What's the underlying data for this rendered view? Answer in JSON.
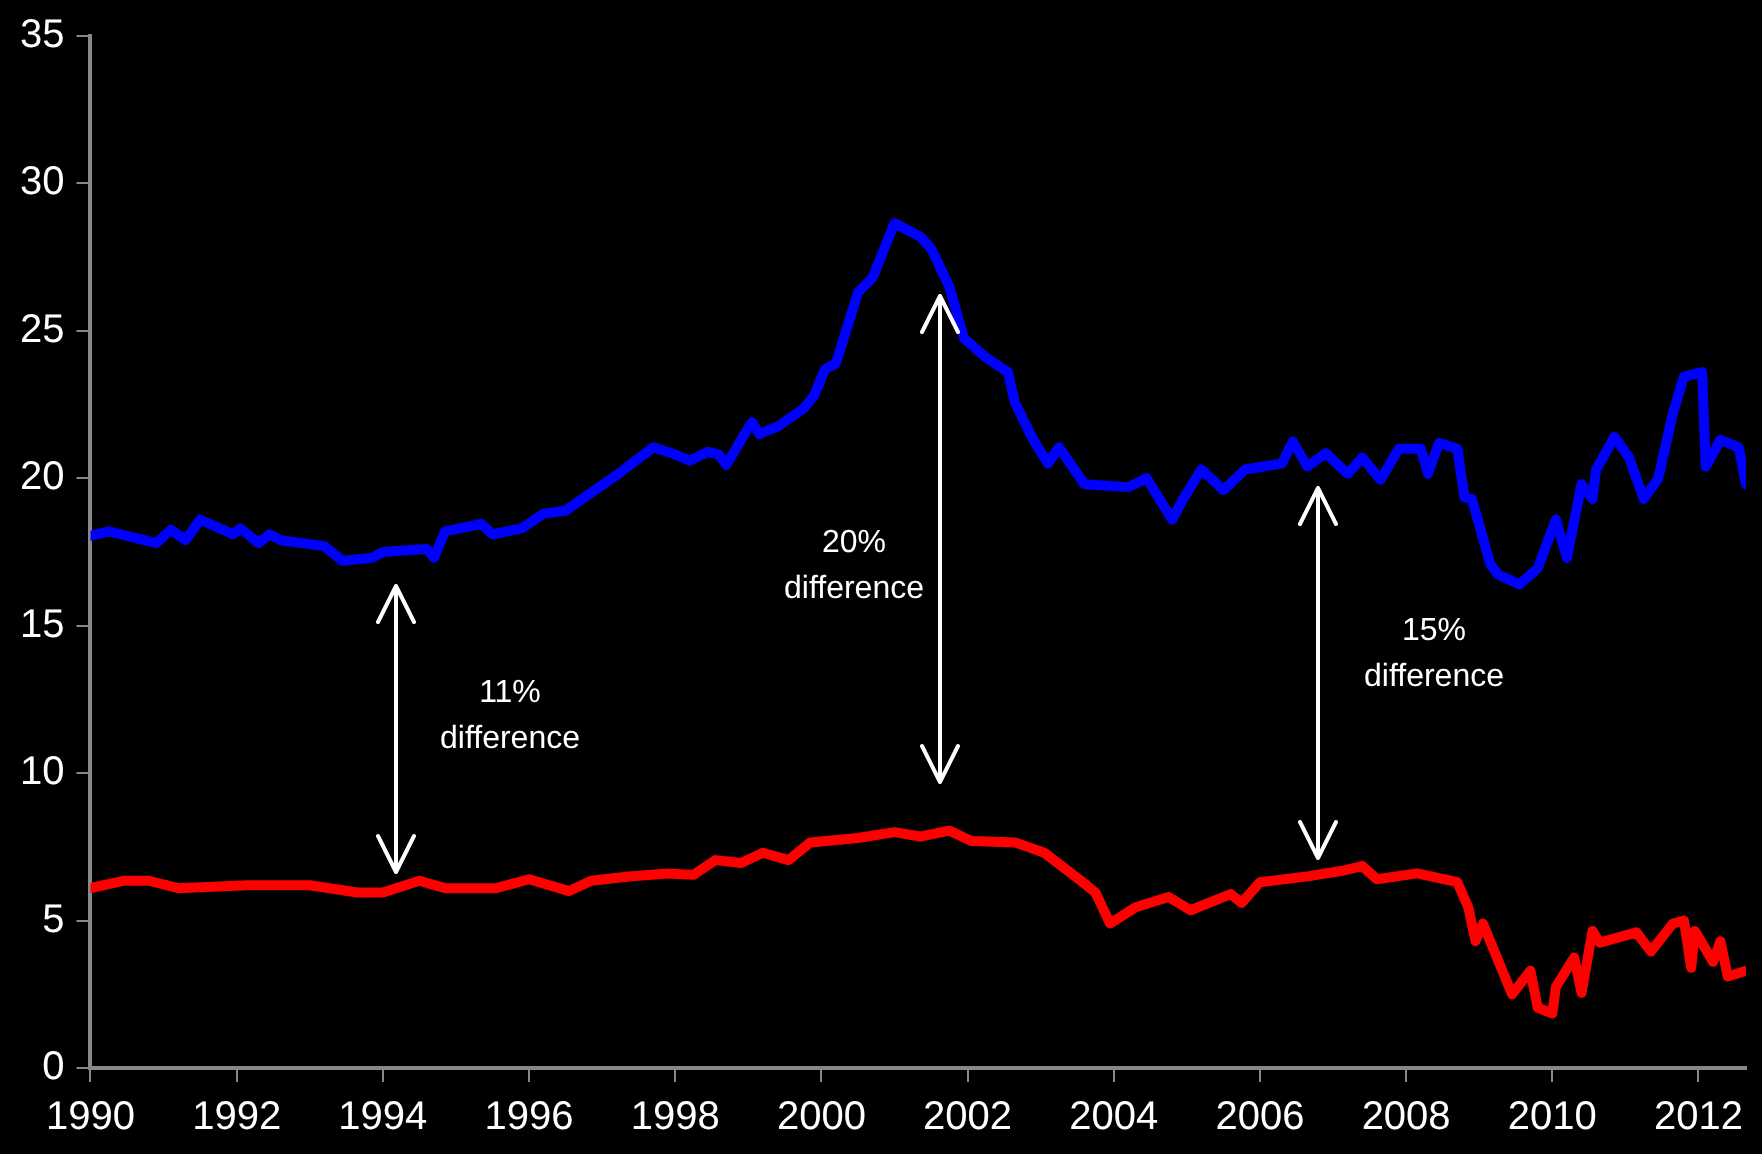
{
  "chart_data": {
    "type": "line",
    "xlim": [
      1990,
      2012.65
    ],
    "xticks": [
      1990,
      1992,
      1994,
      1996,
      1998,
      2000,
      2002,
      2004,
      2006,
      2008,
      2010,
      2012
    ],
    "ylim": [
      0,
      35
    ],
    "yticks": [
      0,
      5,
      10,
      15,
      20,
      25,
      30,
      35
    ],
    "grid": false,
    "legend": false,
    "marker": "none",
    "line_style": "solid",
    "series": [
      {
        "color": "#0000ff",
        "x": [
          1990.0,
          1990.25,
          1990.9,
          1991.1,
          1991.3,
          1991.5,
          1991.95,
          1992.05,
          1992.3,
          1992.45,
          1992.6,
          1993.2,
          1993.45,
          1993.85,
          1994.0,
          1994.6,
          1994.7,
          1994.85,
          1995.35,
          1995.5,
          1995.9,
          1996.2,
          1996.5,
          1997.25,
          1997.7,
          1997.95,
          1998.2,
          1998.45,
          1998.6,
          1998.7,
          1998.9,
          1999.05,
          1999.15,
          1999.4,
          1999.75,
          1999.9,
          2000.05,
          2000.2,
          2000.5,
          2000.7,
          2001.0,
          2001.35,
          2001.5,
          2001.75,
          2001.95,
          2002.25,
          2002.55,
          2002.65,
          2002.9,
          2003.1,
          2003.25,
          2003.6,
          2004.2,
          2004.45,
          2004.8,
          2004.95,
          2005.2,
          2005.5,
          2005.8,
          2006.3,
          2006.45,
          2006.65,
          2006.9,
          2007.2,
          2007.4,
          2007.65,
          2007.9,
          2008.2,
          2008.3,
          2008.45,
          2008.7,
          2008.8,
          2008.9,
          2009.15,
          2009.25,
          2009.55,
          2009.8,
          2010.05,
          2010.2,
          2010.4,
          2010.55,
          2010.6,
          2010.85,
          2011.05,
          2011.25,
          2011.45,
          2011.65,
          2011.8,
          2012.05,
          2012.1,
          2012.3,
          2012.55,
          2012.65
        ],
        "values": [
          18.05,
          18.2,
          17.8,
          18.25,
          17.9,
          18.6,
          18.1,
          18.3,
          17.8,
          18.1,
          17.9,
          17.7,
          17.2,
          17.3,
          17.5,
          17.6,
          17.3,
          18.2,
          18.45,
          18.1,
          18.3,
          18.8,
          18.9,
          20.2,
          21.05,
          20.85,
          20.6,
          20.9,
          20.8,
          20.45,
          21.3,
          21.9,
          21.5,
          21.75,
          22.35,
          22.8,
          23.7,
          23.9,
          26.3,
          26.8,
          28.65,
          28.2,
          27.8,
          26.5,
          24.75,
          24.1,
          23.6,
          22.55,
          21.3,
          20.5,
          21.05,
          19.8,
          19.7,
          20.0,
          18.6,
          19.3,
          20.3,
          19.6,
          20.3,
          20.5,
          21.25,
          20.4,
          20.85,
          20.15,
          20.7,
          19.95,
          21.0,
          21.0,
          20.15,
          21.2,
          21.0,
          19.35,
          19.3,
          17.1,
          16.75,
          16.4,
          16.95,
          18.6,
          17.3,
          19.8,
          19.3,
          20.3,
          21.4,
          20.7,
          19.3,
          20.0,
          22.2,
          23.45,
          23.6,
          20.4,
          21.3,
          21.05,
          19.8
        ]
      },
      {
        "color": "#ff0000",
        "x": [
          1990.0,
          1990.45,
          1990.8,
          1991.2,
          1992.15,
          1993.0,
          1993.65,
          1994.0,
          1994.5,
          1994.85,
          1995.55,
          1996.0,
          1996.55,
          1996.85,
          1997.4,
          1997.9,
          1998.25,
          1998.55,
          1998.9,
          1999.2,
          1999.55,
          1999.85,
          2000.5,
          2001.0,
          2001.35,
          2001.75,
          2002.05,
          2002.65,
          2003.05,
          2003.55,
          2003.75,
          2003.95,
          2004.3,
          2004.75,
          2005.05,
          2005.6,
          2005.75,
          2006.0,
          2006.65,
          2007.15,
          2007.4,
          2007.6,
          2008.15,
          2008.7,
          2008.85,
          2008.95,
          2009.05,
          2009.45,
          2009.7,
          2009.8,
          2010.0,
          2010.05,
          2010.3,
          2010.4,
          2010.55,
          2010.65,
          2011.15,
          2011.35,
          2011.65,
          2011.8,
          2011.9,
          2011.95,
          2012.2,
          2012.3,
          2012.4,
          2012.65
        ],
        "values": [
          6.1,
          6.35,
          6.35,
          6.1,
          6.2,
          6.2,
          5.95,
          5.95,
          6.35,
          6.1,
          6.1,
          6.4,
          6.0,
          6.35,
          6.5,
          6.6,
          6.55,
          7.05,
          6.95,
          7.3,
          7.05,
          7.65,
          7.8,
          8.0,
          7.85,
          8.05,
          7.7,
          7.65,
          7.3,
          6.35,
          5.95,
          4.9,
          5.45,
          5.8,
          5.35,
          5.9,
          5.6,
          6.3,
          6.5,
          6.7,
          6.85,
          6.4,
          6.6,
          6.3,
          5.45,
          4.3,
          4.9,
          2.5,
          3.3,
          2.05,
          1.85,
          2.75,
          3.75,
          2.55,
          4.65,
          4.25,
          4.6,
          3.95,
          4.9,
          5.0,
          3.4,
          4.65,
          3.6,
          4.3,
          3.1,
          3.3
        ]
      }
    ],
    "annotations": [
      "11%\ndifference",
      "20%\ndifference",
      "15%\ndifference"
    ]
  }
}
